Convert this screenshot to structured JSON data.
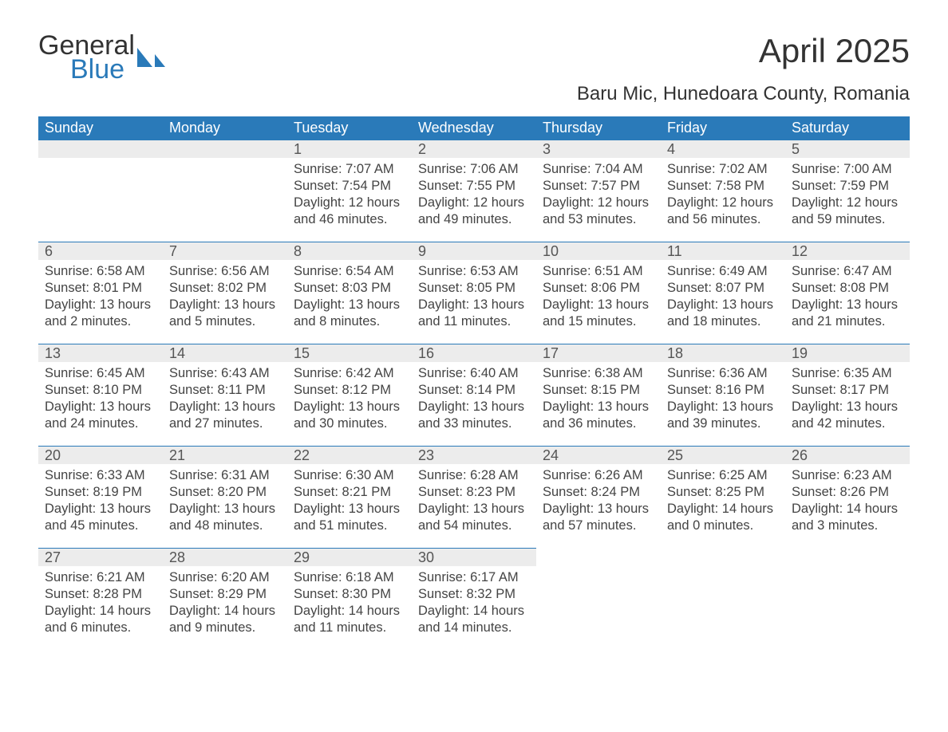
{
  "brand": {
    "word1": "General",
    "word2": "Blue"
  },
  "title": "April 2025",
  "location": "Baru Mic, Hunedoara County, Romania",
  "colors": {
    "brand_blue": "#2a7ab9",
    "header_bg": "#2a7ab9",
    "header_text": "#ffffff",
    "daynum_bg": "#ececec",
    "row_border": "#2a7ab9",
    "body_text": "#444444",
    "page_bg": "#ffffff"
  },
  "font": {
    "family": "Segoe UI",
    "month_title_pt": 42,
    "location_pt": 24,
    "header_pt": 18,
    "cell_pt": 16.5
  },
  "table": {
    "type": "calendar",
    "columns": [
      "Sunday",
      "Monday",
      "Tuesday",
      "Wednesday",
      "Thursday",
      "Friday",
      "Saturday"
    ],
    "weeks": [
      [
        null,
        null,
        {
          "n": "1",
          "sr": "7:07 AM",
          "ss": "7:54 PM",
          "dl": "12 hours and 46 minutes."
        },
        {
          "n": "2",
          "sr": "7:06 AM",
          "ss": "7:55 PM",
          "dl": "12 hours and 49 minutes."
        },
        {
          "n": "3",
          "sr": "7:04 AM",
          "ss": "7:57 PM",
          "dl": "12 hours and 53 minutes."
        },
        {
          "n": "4",
          "sr": "7:02 AM",
          "ss": "7:58 PM",
          "dl": "12 hours and 56 minutes."
        },
        {
          "n": "5",
          "sr": "7:00 AM",
          "ss": "7:59 PM",
          "dl": "12 hours and 59 minutes."
        }
      ],
      [
        {
          "n": "6",
          "sr": "6:58 AM",
          "ss": "8:01 PM",
          "dl": "13 hours and 2 minutes."
        },
        {
          "n": "7",
          "sr": "6:56 AM",
          "ss": "8:02 PM",
          "dl": "13 hours and 5 minutes."
        },
        {
          "n": "8",
          "sr": "6:54 AM",
          "ss": "8:03 PM",
          "dl": "13 hours and 8 minutes."
        },
        {
          "n": "9",
          "sr": "6:53 AM",
          "ss": "8:05 PM",
          "dl": "13 hours and 11 minutes."
        },
        {
          "n": "10",
          "sr": "6:51 AM",
          "ss": "8:06 PM",
          "dl": "13 hours and 15 minutes."
        },
        {
          "n": "11",
          "sr": "6:49 AM",
          "ss": "8:07 PM",
          "dl": "13 hours and 18 minutes."
        },
        {
          "n": "12",
          "sr": "6:47 AM",
          "ss": "8:08 PM",
          "dl": "13 hours and 21 minutes."
        }
      ],
      [
        {
          "n": "13",
          "sr": "6:45 AM",
          "ss": "8:10 PM",
          "dl": "13 hours and 24 minutes."
        },
        {
          "n": "14",
          "sr": "6:43 AM",
          "ss": "8:11 PM",
          "dl": "13 hours and 27 minutes."
        },
        {
          "n": "15",
          "sr": "6:42 AM",
          "ss": "8:12 PM",
          "dl": "13 hours and 30 minutes."
        },
        {
          "n": "16",
          "sr": "6:40 AM",
          "ss": "8:14 PM",
          "dl": "13 hours and 33 minutes."
        },
        {
          "n": "17",
          "sr": "6:38 AM",
          "ss": "8:15 PM",
          "dl": "13 hours and 36 minutes."
        },
        {
          "n": "18",
          "sr": "6:36 AM",
          "ss": "8:16 PM",
          "dl": "13 hours and 39 minutes."
        },
        {
          "n": "19",
          "sr": "6:35 AM",
          "ss": "8:17 PM",
          "dl": "13 hours and 42 minutes."
        }
      ],
      [
        {
          "n": "20",
          "sr": "6:33 AM",
          "ss": "8:19 PM",
          "dl": "13 hours and 45 minutes."
        },
        {
          "n": "21",
          "sr": "6:31 AM",
          "ss": "8:20 PM",
          "dl": "13 hours and 48 minutes."
        },
        {
          "n": "22",
          "sr": "6:30 AM",
          "ss": "8:21 PM",
          "dl": "13 hours and 51 minutes."
        },
        {
          "n": "23",
          "sr": "6:28 AM",
          "ss": "8:23 PM",
          "dl": "13 hours and 54 minutes."
        },
        {
          "n": "24",
          "sr": "6:26 AM",
          "ss": "8:24 PM",
          "dl": "13 hours and 57 minutes."
        },
        {
          "n": "25",
          "sr": "6:25 AM",
          "ss": "8:25 PM",
          "dl": "14 hours and 0 minutes."
        },
        {
          "n": "26",
          "sr": "6:23 AM",
          "ss": "8:26 PM",
          "dl": "14 hours and 3 minutes."
        }
      ],
      [
        {
          "n": "27",
          "sr": "6:21 AM",
          "ss": "8:28 PM",
          "dl": "14 hours and 6 minutes."
        },
        {
          "n": "28",
          "sr": "6:20 AM",
          "ss": "8:29 PM",
          "dl": "14 hours and 9 minutes."
        },
        {
          "n": "29",
          "sr": "6:18 AM",
          "ss": "8:30 PM",
          "dl": "14 hours and 11 minutes."
        },
        {
          "n": "30",
          "sr": "6:17 AM",
          "ss": "8:32 PM",
          "dl": "14 hours and 14 minutes."
        },
        null,
        null,
        null
      ]
    ],
    "labels": {
      "sunrise": "Sunrise: ",
      "sunset": "Sunset: ",
      "daylight": "Daylight: "
    }
  }
}
